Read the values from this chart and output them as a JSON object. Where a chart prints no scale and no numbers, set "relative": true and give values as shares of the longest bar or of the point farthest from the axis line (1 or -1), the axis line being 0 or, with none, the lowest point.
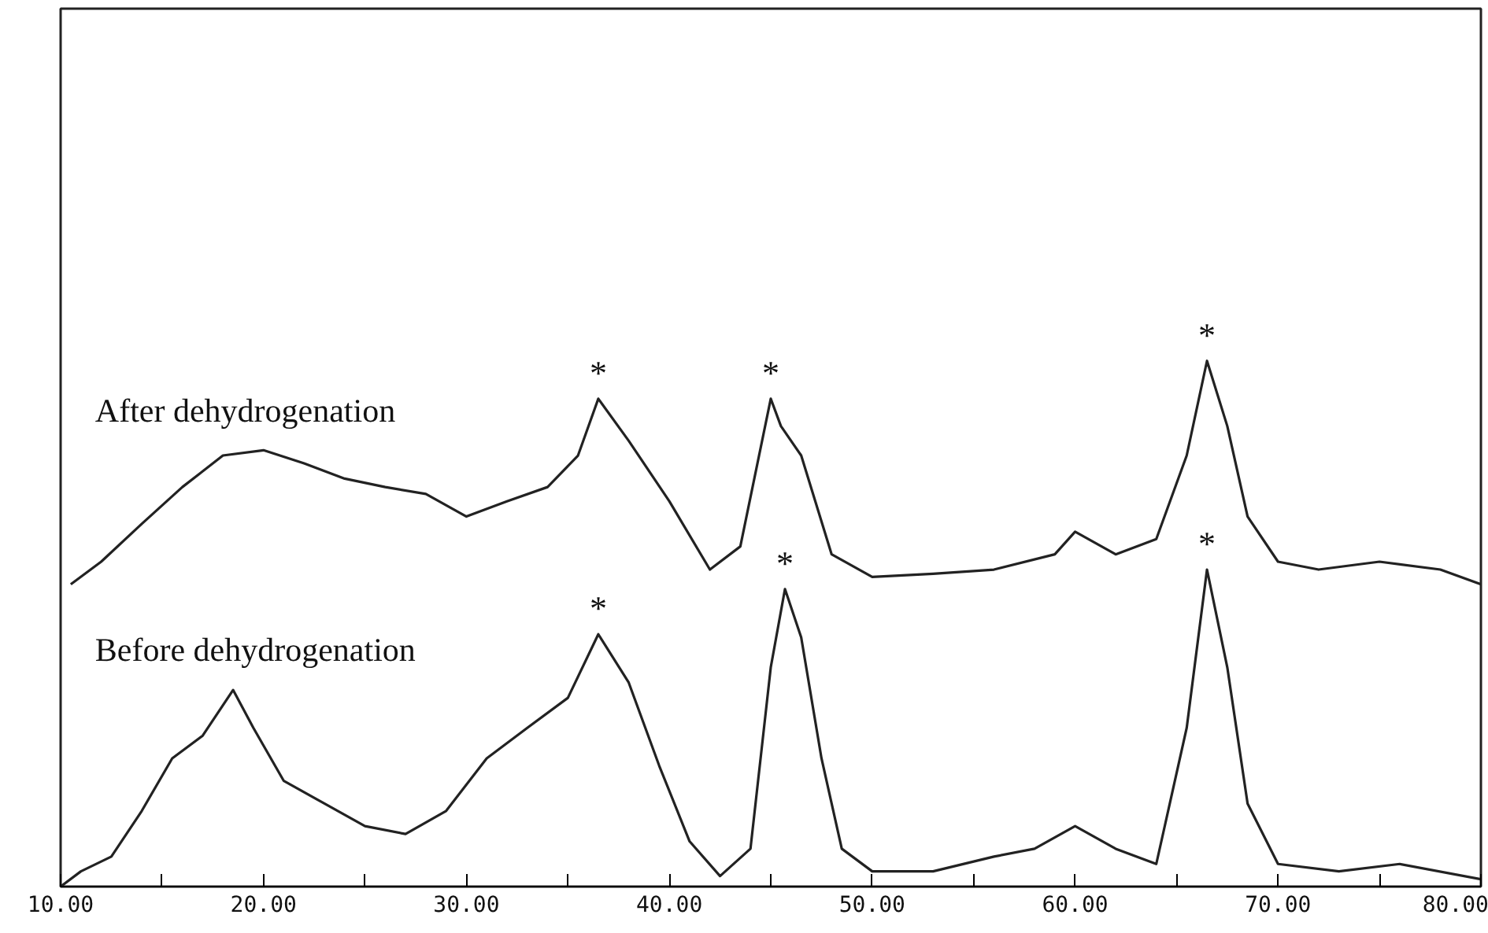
{
  "chart_data": {
    "type": "line",
    "relative": true,
    "xlim": [
      10,
      80
    ],
    "xticks": [
      {
        "value": 10,
        "label": "10.00"
      },
      {
        "value": 15,
        "label": null
      },
      {
        "value": 20,
        "label": "20.00"
      },
      {
        "value": 25,
        "label": null
      },
      {
        "value": 30,
        "label": "30.00"
      },
      {
        "value": 35,
        "label": null
      },
      {
        "value": 40,
        "label": "40.00"
      },
      {
        "value": 45,
        "label": null
      },
      {
        "value": 50,
        "label": "50.00"
      },
      {
        "value": 55,
        "label": null
      },
      {
        "value": 60,
        "label": "60.00"
      },
      {
        "value": 65,
        "label": null
      },
      {
        "value": 70,
        "label": "70.00"
      },
      {
        "value": 75,
        "label": null
      },
      {
        "value": 80,
        "label": "80.00"
      }
    ],
    "grid": false,
    "marker": "none",
    "line_style": "solid",
    "series": [
      {
        "name": "After dehydrogenation",
        "color": "#222222",
        "x": [
          10.5,
          12,
          14,
          16,
          18,
          20,
          22,
          24,
          26,
          28,
          30,
          32,
          34,
          35.5,
          36.5,
          38,
          40,
          42,
          43.5,
          45,
          45.5,
          46.5,
          48,
          50,
          53,
          56,
          59,
          60,
          62,
          64,
          65.5,
          66.5,
          67.5,
          68.5,
          70,
          72,
          75,
          78,
          80
        ],
        "values": [
          0.575,
          0.618,
          0.69,
          0.76,
          0.82,
          0.83,
          0.805,
          0.776,
          0.76,
          0.747,
          0.704,
          0.733,
          0.76,
          0.82,
          0.928,
          0.848,
          0.733,
          0.603,
          0.647,
          0.928,
          0.876,
          0.82,
          0.632,
          0.589,
          0.595,
          0.603,
          0.632,
          0.675,
          0.632,
          0.661,
          0.82,
          1.0,
          0.876,
          0.704,
          0.618,
          0.603,
          0.618,
          0.603,
          0.575
        ]
      },
      {
        "name": "Before dehydrogenation",
        "color": "#222222",
        "x": [
          10,
          11,
          12.5,
          14,
          15.5,
          17,
          18.5,
          19.5,
          21,
          23,
          25,
          27,
          29,
          31,
          33,
          35,
          36.5,
          38,
          39.5,
          41,
          42.5,
          44,
          45,
          45.7,
          46.5,
          47.5,
          48.5,
          50,
          53,
          56,
          58,
          60,
          62,
          64,
          65.5,
          66.5,
          67.5,
          68.5,
          70,
          73,
          76,
          80
        ],
        "values": [
          0,
          0.029,
          0.057,
          0.144,
          0.244,
          0.287,
          0.374,
          0.302,
          0.201,
          0.158,
          0.115,
          0.1,
          0.144,
          0.244,
          0.302,
          0.359,
          0.48,
          0.388,
          0.23,
          0.086,
          0.02,
          0.072,
          0.417,
          0.566,
          0.474,
          0.244,
          0.072,
          0.029,
          0.029,
          0.057,
          0.072,
          0.115,
          0.072,
          0.043,
          0.302,
          0.603,
          0.417,
          0.158,
          0.043,
          0.029,
          0.043,
          0.014
        ]
      }
    ],
    "annotations": [
      {
        "text": "*",
        "x": 36.5,
        "y": 0.928
      },
      {
        "text": "*",
        "x": 45,
        "y": 0.928
      },
      {
        "text": "*",
        "x": 66.5,
        "y": 1.0
      },
      {
        "text": "*",
        "x": 36.5,
        "y": 0.48
      },
      {
        "text": "*",
        "x": 45.7,
        "y": 0.566
      },
      {
        "text": "*",
        "x": 66.5,
        "y": 0.603
      }
    ]
  }
}
